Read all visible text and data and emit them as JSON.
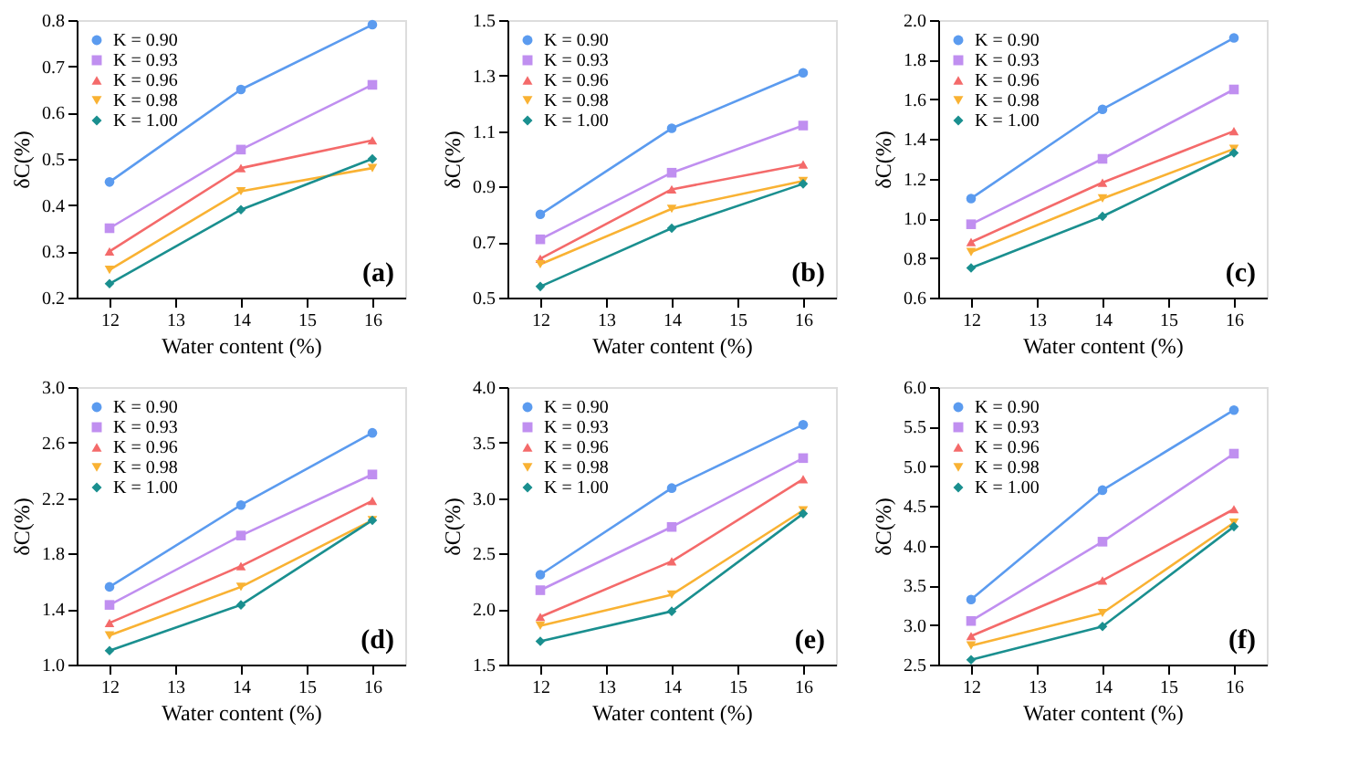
{
  "chart_data": [
    {
      "type": "line",
      "xlabel": "Water content (%)",
      "ylabel": "δC(%)",
      "x": [
        12,
        14,
        16
      ],
      "xlim": [
        11.5,
        16.5
      ],
      "xticks": [
        12,
        13,
        14,
        15,
        16
      ],
      "ylim": [
        0.2,
        0.8
      ],
      "yticks": [
        0.2,
        0.3,
        0.4,
        0.5,
        0.6,
        0.7,
        0.8
      ],
      "grid": false,
      "legend": "top left",
      "annotations": [
        "(a)"
      ],
      "series": [
        {
          "name": "K = 0.90",
          "color": "#5b9bef",
          "marker": "circle",
          "values": [
            0.45,
            0.65,
            0.79
          ]
        },
        {
          "name": "K = 0.93",
          "color": "#c08ff0",
          "marker": "square",
          "values": [
            0.35,
            0.52,
            0.66
          ]
        },
        {
          "name": "K = 0.96",
          "color": "#f46a6a",
          "marker": "triangle",
          "values": [
            0.3,
            0.48,
            0.54
          ]
        },
        {
          "name": "K = 0.98",
          "color": "#f9b233",
          "marker": "triangle-down",
          "values": [
            0.26,
            0.43,
            0.48
          ]
        },
        {
          "name": "K = 1.00",
          "color": "#1a8f8f",
          "marker": "diamond",
          "values": [
            0.23,
            0.39,
            0.5
          ]
        }
      ]
    },
    {
      "type": "line",
      "xlabel": "Water content (%)",
      "ylabel": "δC(%)",
      "x": [
        12,
        14,
        16
      ],
      "xlim": [
        11.5,
        16.5
      ],
      "xticks": [
        12,
        13,
        14,
        15,
        16
      ],
      "ylim": [
        0.5,
        1.5
      ],
      "yticks": [
        0.5,
        0.7,
        0.9,
        1.1,
        1.3,
        1.5
      ],
      "grid": false,
      "legend": "top left",
      "annotations": [
        "(b)"
      ],
      "series": [
        {
          "name": "K = 0.90",
          "color": "#5b9bef",
          "marker": "circle",
          "values": [
            0.8,
            1.11,
            1.31
          ]
        },
        {
          "name": "K = 0.93",
          "color": "#c08ff0",
          "marker": "square",
          "values": [
            0.71,
            0.95,
            1.12
          ]
        },
        {
          "name": "K = 0.96",
          "color": "#f46a6a",
          "marker": "triangle",
          "values": [
            0.64,
            0.89,
            0.98
          ]
        },
        {
          "name": "K = 0.98",
          "color": "#f9b233",
          "marker": "triangle-down",
          "values": [
            0.62,
            0.82,
            0.92
          ]
        },
        {
          "name": "K = 1.00",
          "color": "#1a8f8f",
          "marker": "diamond",
          "values": [
            0.54,
            0.75,
            0.91
          ]
        }
      ]
    },
    {
      "type": "line",
      "xlabel": "Water content (%)",
      "ylabel": "δC(%)",
      "x": [
        12,
        14,
        16
      ],
      "xlim": [
        11.5,
        16.5
      ],
      "xticks": [
        12,
        13,
        14,
        15,
        16
      ],
      "ylim": [
        0.6,
        2.0
      ],
      "yticks": [
        0.6,
        0.8,
        {
          "value": 1,
          "label": "1.0"
        },
        1.2,
        1.4,
        1.6,
        1.8,
        {
          "value": 2,
          "label": "2.0"
        }
      ],
      "grid": false,
      "legend": "top left",
      "annotations": [
        "(c)"
      ],
      "series": [
        {
          "name": "K = 0.90",
          "color": "#5b9bef",
          "marker": "circle",
          "values": [
            1.1,
            1.55,
            1.91
          ]
        },
        {
          "name": "K = 0.93",
          "color": "#c08ff0",
          "marker": "square",
          "values": [
            0.97,
            1.3,
            1.65
          ]
        },
        {
          "name": "K = 0.96",
          "color": "#f46a6a",
          "marker": "triangle",
          "values": [
            0.88,
            1.18,
            1.44
          ]
        },
        {
          "name": "K = 0.98",
          "color": "#f9b233",
          "marker": "triangle-down",
          "values": [
            0.83,
            1.1,
            1.35
          ]
        },
        {
          "name": "K = 1.00",
          "color": "#1a8f8f",
          "marker": "diamond",
          "values": [
            0.75,
            1.01,
            1.33
          ]
        }
      ]
    },
    {
      "type": "line",
      "xlabel": "Water content (%)",
      "ylabel": "δC(%)",
      "x": [
        12,
        14,
        16
      ],
      "xlim": [
        11.5,
        16.5
      ],
      "xticks": [
        12,
        13,
        14,
        15,
        16
      ],
      "ylim": [
        1.0,
        3.0
      ],
      "yticks": [
        {
          "value": 1,
          "label": "1.0"
        },
        1.4,
        1.8,
        2.2,
        2.6,
        {
          "value": 3,
          "label": "3.0"
        }
      ],
      "grid": false,
      "legend": "top left",
      "annotations": [
        "(d)"
      ],
      "series": [
        {
          "name": "K = 0.90",
          "color": "#5b9bef",
          "marker": "circle",
          "values": [
            1.56,
            2.15,
            2.67
          ]
        },
        {
          "name": "K = 0.93",
          "color": "#c08ff0",
          "marker": "square",
          "values": [
            1.43,
            1.93,
            2.37
          ]
        },
        {
          "name": "K = 0.96",
          "color": "#f46a6a",
          "marker": "triangle",
          "values": [
            1.3,
            1.71,
            2.18
          ]
        },
        {
          "name": "K = 0.98",
          "color": "#f9b233",
          "marker": "triangle-down",
          "values": [
            1.21,
            1.56,
            2.04
          ]
        },
        {
          "name": "K = 1.00",
          "color": "#1a8f8f",
          "marker": "diamond",
          "values": [
            1.1,
            1.43,
            2.04
          ]
        }
      ]
    },
    {
      "type": "line",
      "xlabel": "Water content (%)",
      "ylabel": "δC(%)",
      "x": [
        12,
        14,
        16
      ],
      "xlim": [
        11.5,
        16.5
      ],
      "xticks": [
        12,
        13,
        14,
        15,
        16
      ],
      "ylim": [
        1.5,
        4.0
      ],
      "yticks": [
        1.5,
        {
          "value": 2,
          "label": "2.0"
        },
        2.5,
        {
          "value": 3,
          "label": "3.0"
        },
        3.5,
        {
          "value": 4,
          "label": "4.0"
        }
      ],
      "grid": false,
      "legend": "top left",
      "annotations": [
        "(e)"
      ],
      "series": [
        {
          "name": "K = 0.90",
          "color": "#5b9bef",
          "marker": "circle",
          "values": [
            2.31,
            3.09,
            3.66
          ]
        },
        {
          "name": "K = 0.93",
          "color": "#c08ff0",
          "marker": "square",
          "values": [
            2.17,
            2.74,
            3.36
          ]
        },
        {
          "name": "K = 0.96",
          "color": "#f46a6a",
          "marker": "triangle",
          "values": [
            1.93,
            2.43,
            3.17
          ]
        },
        {
          "name": "K = 0.98",
          "color": "#f9b233",
          "marker": "triangle-down",
          "values": [
            1.85,
            2.13,
            2.89
          ]
        },
        {
          "name": "K = 1.00",
          "color": "#1a8f8f",
          "marker": "diamond",
          "values": [
            1.71,
            1.98,
            2.86
          ]
        }
      ]
    },
    {
      "type": "line",
      "xlabel": "Water content (%)",
      "ylabel": "δC(%)",
      "x": [
        12,
        14,
        16
      ],
      "xlim": [
        11.5,
        16.5
      ],
      "xticks": [
        12,
        13,
        14,
        15,
        16
      ],
      "ylim": [
        2.5,
        6.0
      ],
      "yticks": [
        2.5,
        {
          "value": 3,
          "label": "3.0"
        },
        3.5,
        {
          "value": 4,
          "label": "4.0"
        },
        4.5,
        {
          "value": 5,
          "label": "5.0"
        },
        5.5,
        {
          "value": 6,
          "label": "6.0"
        }
      ],
      "grid": false,
      "legend": "top left",
      "annotations": [
        "(f)"
      ],
      "series": [
        {
          "name": "K = 0.90",
          "color": "#5b9bef",
          "marker": "circle",
          "values": [
            3.32,
            4.7,
            5.71
          ]
        },
        {
          "name": "K = 0.93",
          "color": "#c08ff0",
          "marker": "square",
          "values": [
            3.05,
            4.05,
            5.16
          ]
        },
        {
          "name": "K = 0.96",
          "color": "#f46a6a",
          "marker": "triangle",
          "values": [
            2.86,
            3.56,
            4.46
          ]
        },
        {
          "name": "K = 0.98",
          "color": "#f9b233",
          "marker": "triangle-down",
          "values": [
            2.74,
            3.15,
            4.29
          ]
        },
        {
          "name": "K = 1.00",
          "color": "#1a8f8f",
          "marker": "diamond",
          "values": [
            2.56,
            2.98,
            4.24
          ]
        }
      ]
    }
  ]
}
